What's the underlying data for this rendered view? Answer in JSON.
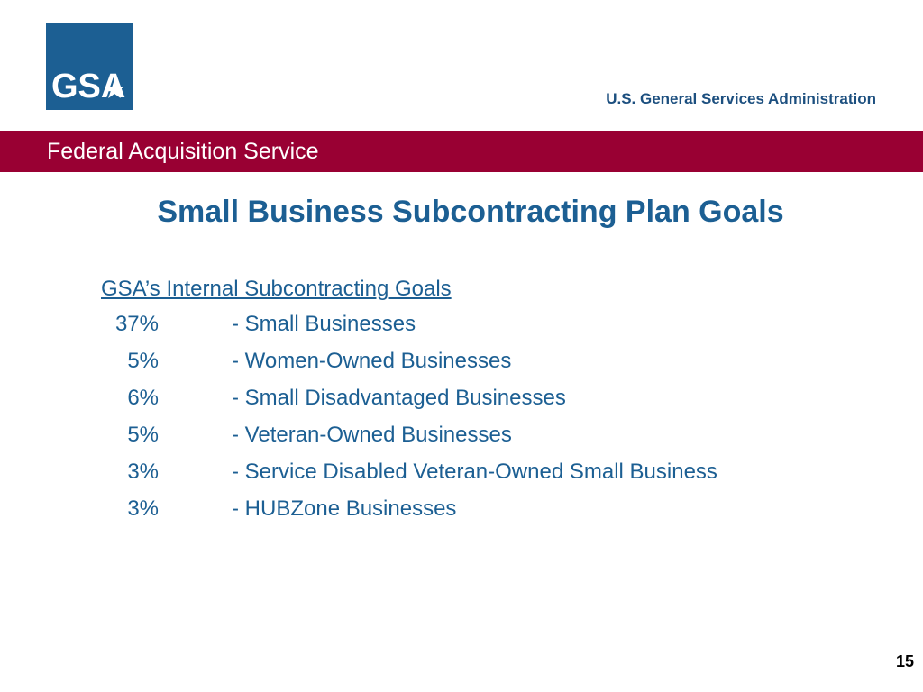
{
  "header": {
    "logo_text": "GSA",
    "agency_name": "U.S. General Services Administration",
    "service_name": "Federal Acquisition Service"
  },
  "slide": {
    "title": "Small Business Subcontracting Plan Goals",
    "subheading": "GSA’s Internal Subcontracting Goals",
    "goals": [
      {
        "percent": "37%",
        "label": "- Small Businesses"
      },
      {
        "percent": "5%",
        "label": "- Women-Owned Businesses"
      },
      {
        "percent": "6%",
        "label": "- Small Disadvantaged Businesses"
      },
      {
        "percent": "5%",
        "label": "- Veteran-Owned Businesses"
      },
      {
        "percent": "3%",
        "label": "- Service Disabled Veteran-Owned Small Business"
      },
      {
        "percent": "3%",
        "label": "- HUBZone Businesses"
      }
    ],
    "page_number": "15"
  },
  "colors": {
    "brand_blue": "#1c5f93",
    "banner_red": "#990033"
  }
}
